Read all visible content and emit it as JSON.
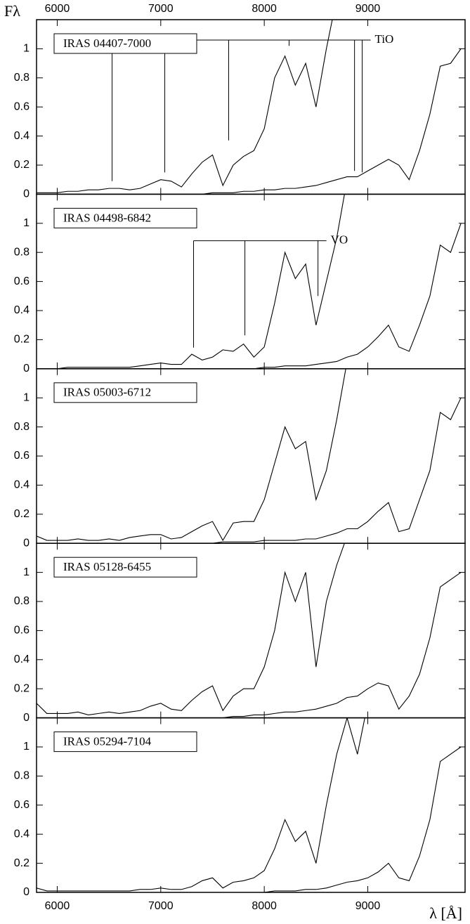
{
  "chart_data": [
    {
      "type": "line",
      "ylabel": "Fλ",
      "label": "IRAS 04407-7000",
      "xlim": [
        5800,
        9940
      ],
      "xticks": [
        6000,
        7000,
        8000,
        9000
      ],
      "ylim": [
        0,
        1.2
      ],
      "yticks": [
        0,
        0.2,
        0.4,
        0.6,
        0.8,
        1
      ],
      "x": [
        5800,
        5900,
        6000,
        6100,
        6200,
        6300,
        6400,
        6500,
        6600,
        6700,
        6800,
        6900,
        7000,
        7100,
        7200,
        7300,
        7400,
        7500,
        7600,
        7700,
        7800,
        7900,
        8000,
        8100,
        8200,
        8300,
        8400,
        8500,
        8600,
        8700,
        8800,
        8900,
        9000,
        9100,
        9200,
        9300,
        9400,
        9500,
        9600,
        9700,
        9800,
        9900
      ],
      "series": [
        {
          "color": "#000000",
          "values": [
            0.01,
            0.01,
            0.01,
            0.02,
            0.02,
            0.03,
            0.03,
            0.04,
            0.04,
            0.03,
            0.04,
            0.07,
            0.1,
            0.09,
            0.05,
            0.14,
            0.22,
            0.27,
            0.06,
            0.2,
            0.26,
            0.3,
            0.45,
            0.8,
            0.95,
            0.75,
            0.9,
            0.6,
            1.0,
            1.35,
            null,
            null,
            null,
            null,
            null,
            null,
            null,
            null,
            null,
            null,
            null,
            null
          ]
        },
        {
          "color": "#000000",
          "values": [
            0,
            0,
            0,
            0,
            0,
            0,
            0,
            0,
            0,
            0,
            0,
            0,
            0,
            0,
            0,
            0,
            0,
            0.01,
            0.01,
            0.01,
            0.02,
            0.02,
            0.03,
            0.03,
            0.04,
            0.04,
            0.05,
            0.06,
            0.08,
            0.1,
            0.12,
            0.12,
            0.16,
            0.2,
            0.24,
            0.2,
            0.1,
            0.3,
            0.55,
            0.88,
            0.9,
            1.0
          ]
        }
      ],
      "annotations": [
        {
          "label": "TiO",
          "y": 1.06,
          "lines": [
            {
              "x": 6530,
              "y": 0.09
            },
            {
              "x": 7039,
              "y": 0.15
            },
            {
              "x": 7656,
              "y": 0.37
            },
            {
              "x": 8240,
              "y": 1.02
            },
            {
              "x": 8872,
              "y": 0.16
            },
            {
              "x": 8946,
              "y": 0.15
            }
          ]
        }
      ]
    },
    {
      "type": "line",
      "label": "IRAS 04498-6842",
      "xlim": [
        5800,
        9940
      ],
      "xticks": [
        6000,
        7000,
        8000,
        9000
      ],
      "ylim": [
        0,
        1.2
      ],
      "yticks": [
        0,
        0.2,
        0.4,
        0.6,
        0.8,
        1
      ],
      "x": [
        5800,
        5900,
        6000,
        6100,
        6200,
        6300,
        6400,
        6500,
        6600,
        6700,
        6800,
        6900,
        7000,
        7100,
        7200,
        7300,
        7400,
        7500,
        7600,
        7700,
        7800,
        7900,
        8000,
        8100,
        8200,
        8300,
        8400,
        8500,
        8600,
        8700,
        8800,
        8900,
        9000,
        9100,
        9200,
        9300,
        9400,
        9500,
        9600,
        9700,
        9800,
        9900
      ],
      "series": [
        {
          "color": "#000000",
          "values": [
            0,
            0,
            0,
            0.01,
            0.01,
            0.01,
            0.01,
            0.01,
            0.01,
            0.01,
            0.02,
            0.03,
            0.04,
            0.03,
            0.03,
            0.1,
            0.06,
            0.08,
            0.13,
            0.12,
            0.17,
            0.08,
            0.15,
            0.45,
            0.8,
            0.62,
            0.72,
            0.3,
            0.6,
            0.9,
            1.3,
            null,
            null,
            null,
            null,
            null,
            null,
            null,
            null,
            null,
            null,
            null
          ]
        },
        {
          "color": "#000000",
          "values": [
            0,
            0,
            0,
            0,
            0,
            0,
            0,
            0,
            0,
            0,
            0,
            0,
            0,
            0,
            0,
            0,
            0,
            0,
            0,
            0,
            0,
            0,
            0.01,
            0.01,
            0.02,
            0.02,
            0.02,
            0.03,
            0.04,
            0.05,
            0.08,
            0.1,
            0.15,
            0.22,
            0.3,
            0.15,
            0.12,
            0.3,
            0.5,
            0.85,
            0.8,
            1.0
          ]
        }
      ],
      "annotations": [
        {
          "label": "VO",
          "y": 0.88,
          "lines": [
            {
              "x": 7317,
              "y": 0.145
            },
            {
              "x": 7813,
              "y": 0.23
            },
            {
              "x": 8519,
              "y": 0.5
            }
          ]
        }
      ]
    },
    {
      "type": "line",
      "label": "IRAS 05003-6712",
      "xlim": [
        5800,
        9940
      ],
      "xticks": [
        6000,
        7000,
        8000,
        9000
      ],
      "ylim": [
        0,
        1.2
      ],
      "yticks": [
        0,
        0.2,
        0.4,
        0.6,
        0.8,
        1
      ],
      "x": [
        5800,
        5900,
        6000,
        6100,
        6200,
        6300,
        6400,
        6500,
        6600,
        6700,
        6800,
        6900,
        7000,
        7100,
        7200,
        7300,
        7400,
        7500,
        7600,
        7700,
        7800,
        7900,
        8000,
        8100,
        8200,
        8300,
        8400,
        8500,
        8600,
        8700,
        8800,
        8900,
        9000,
        9100,
        9200,
        9300,
        9400,
        9500,
        9600,
        9700,
        9800,
        9900
      ],
      "series": [
        {
          "color": "#000000",
          "values": [
            0.05,
            0.02,
            0.02,
            0.02,
            0.03,
            0.02,
            0.02,
            0.03,
            0.02,
            0.04,
            0.05,
            0.06,
            0.06,
            0.03,
            0.04,
            0.08,
            0.12,
            0.15,
            0.02,
            0.14,
            0.15,
            0.15,
            0.3,
            0.55,
            0.8,
            0.65,
            0.7,
            0.3,
            0.5,
            0.85,
            1.25,
            null,
            null,
            null,
            null,
            null,
            null,
            null,
            null,
            null,
            null,
            null
          ]
        },
        {
          "color": "#000000",
          "values": [
            0,
            0,
            0,
            0,
            0,
            0,
            0,
            0,
            0,
            0,
            0,
            0,
            0,
            0,
            0,
            0,
            0,
            0,
            0.01,
            0.01,
            0.01,
            0.01,
            0.02,
            0.02,
            0.02,
            0.02,
            0.03,
            0.03,
            0.05,
            0.07,
            0.1,
            0.1,
            0.15,
            0.22,
            0.28,
            0.08,
            0.1,
            0.3,
            0.5,
            0.9,
            0.85,
            1.0
          ]
        }
      ]
    },
    {
      "type": "line",
      "label": "IRAS 05128-6455",
      "xlim": [
        5800,
        9940
      ],
      "xticks": [
        6000,
        7000,
        8000,
        9000
      ],
      "ylim": [
        0,
        1.2
      ],
      "yticks": [
        0,
        0.2,
        0.4,
        0.6,
        0.8,
        1
      ],
      "x": [
        5800,
        5900,
        6000,
        6100,
        6200,
        6300,
        6400,
        6500,
        6600,
        6700,
        6800,
        6900,
        7000,
        7100,
        7200,
        7300,
        7400,
        7500,
        7600,
        7700,
        7800,
        7900,
        8000,
        8100,
        8200,
        8300,
        8400,
        8500,
        8600,
        8700,
        8800,
        8900,
        9000,
        9100,
        9200,
        9300,
        9400,
        9500,
        9600,
        9700,
        9800,
        9900
      ],
      "series": [
        {
          "color": "#000000",
          "values": [
            0.1,
            0.03,
            0.03,
            0.03,
            0.04,
            0.02,
            0.03,
            0.04,
            0.03,
            0.04,
            0.05,
            0.08,
            0.1,
            0.06,
            0.05,
            0.12,
            0.18,
            0.22,
            0.05,
            0.15,
            0.2,
            0.2,
            0.35,
            0.6,
            1.0,
            0.8,
            1.0,
            0.35,
            0.8,
            1.05,
            1.25,
            null,
            null,
            null,
            null,
            null,
            null,
            null,
            null,
            null,
            null,
            null
          ]
        },
        {
          "color": "#000000",
          "values": [
            0,
            0,
            0,
            0,
            0,
            0,
            0,
            0,
            0,
            0,
            0,
            0,
            0,
            0,
            0,
            0,
            0,
            0,
            0,
            0.01,
            0.01,
            0.02,
            0.02,
            0.03,
            0.04,
            0.04,
            0.05,
            0.06,
            0.08,
            0.1,
            0.14,
            0.15,
            0.2,
            0.24,
            0.22,
            0.06,
            0.15,
            0.3,
            0.55,
            0.9,
            0.95,
            1.0
          ]
        }
      ]
    },
    {
      "type": "line",
      "label": "IRAS 05294-7104",
      "xlabel": "λ [Å]",
      "xlim": [
        5800,
        9940
      ],
      "xticks": [
        6000,
        7000,
        8000,
        9000
      ],
      "ylim": [
        0,
        1.2
      ],
      "yticks": [
        0,
        0.2,
        0.4,
        0.6,
        0.8,
        1
      ],
      "x": [
        5800,
        5900,
        6000,
        6100,
        6200,
        6300,
        6400,
        6500,
        6600,
        6700,
        6800,
        6900,
        7000,
        7100,
        7200,
        7300,
        7400,
        7500,
        7600,
        7700,
        7800,
        7900,
        8000,
        8100,
        8200,
        8300,
        8400,
        8500,
        8600,
        8700,
        8800,
        8900,
        9000,
        9100,
        9200,
        9300,
        9400,
        9500,
        9600,
        9700,
        9800,
        9900
      ],
      "series": [
        {
          "color": "#000000",
          "values": [
            0.03,
            0.01,
            0.01,
            0.01,
            0.01,
            0.01,
            0.01,
            0.01,
            0.01,
            0.01,
            0.02,
            0.02,
            0.03,
            0.02,
            0.02,
            0.04,
            0.08,
            0.1,
            0.03,
            0.07,
            0.08,
            0.1,
            0.15,
            0.3,
            0.5,
            0.35,
            0.42,
            0.2,
            0.6,
            0.95,
            1.2,
            0.95,
            1.3,
            null,
            null,
            null,
            null,
            null,
            null,
            null,
            null,
            null
          ]
        },
        {
          "color": "#000000",
          "values": [
            0,
            0,
            0,
            0,
            0,
            0,
            0,
            0,
            0,
            0,
            0,
            0,
            0,
            0,
            0,
            0,
            0,
            0,
            0,
            0,
            0,
            0,
            0,
            0.01,
            0.01,
            0.01,
            0.02,
            0.02,
            0.03,
            0.05,
            0.07,
            0.08,
            0.1,
            0.14,
            0.2,
            0.1,
            0.08,
            0.25,
            0.5,
            0.9,
            0.95,
            1.0
          ]
        }
      ]
    }
  ]
}
